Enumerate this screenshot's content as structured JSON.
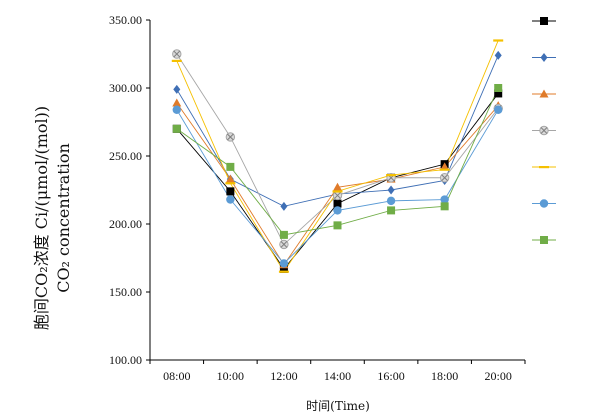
{
  "chart_data": {
    "type": "line",
    "xlabel": "时间(Time)",
    "ylabel_line1": "胞间CO₂浓度 Ci/(μmol/(mol))",
    "ylabel_line2": "CO₂ concentration",
    "categories": [
      "08:00",
      "10:00",
      "12:00",
      "14:00",
      "16:00",
      "18:00",
      "20:00"
    ],
    "ylim": [
      100,
      350
    ],
    "yticks": [
      "100.00",
      "150.00",
      "200.00",
      "250.00",
      "300.00",
      "350.00"
    ],
    "grid": false,
    "legend": "right, markers only without labels",
    "series": [
      {
        "values": [
          270,
          224,
          167,
          215,
          234,
          244,
          296
        ],
        "color": "#000000",
        "marker": "square"
      },
      {
        "values": [
          299,
          233,
          213,
          222,
          225,
          232,
          324
        ],
        "color": "#3f6fb5",
        "marker": "diamond"
      },
      {
        "values": [
          289,
          233,
          170,
          227,
          233,
          242,
          287
        ],
        "color": "#e07b2a",
        "marker": "triangle"
      },
      {
        "values": [
          325,
          264,
          185,
          221,
          234,
          234,
          285
        ],
        "color": "#a6a6a6",
        "marker": "x-circle"
      },
      {
        "values": [
          320,
          230,
          165,
          224,
          236,
          240,
          335
        ],
        "color": "#f5c000",
        "marker": "dash"
      },
      {
        "values": [
          284,
          218,
          171,
          210,
          217,
          218,
          284
        ],
        "color": "#5b9bd5",
        "marker": "circle"
      },
      {
        "values": [
          270,
          242,
          192,
          199,
          210,
          213,
          300
        ],
        "color": "#70ad47",
        "marker": "square"
      }
    ]
  }
}
